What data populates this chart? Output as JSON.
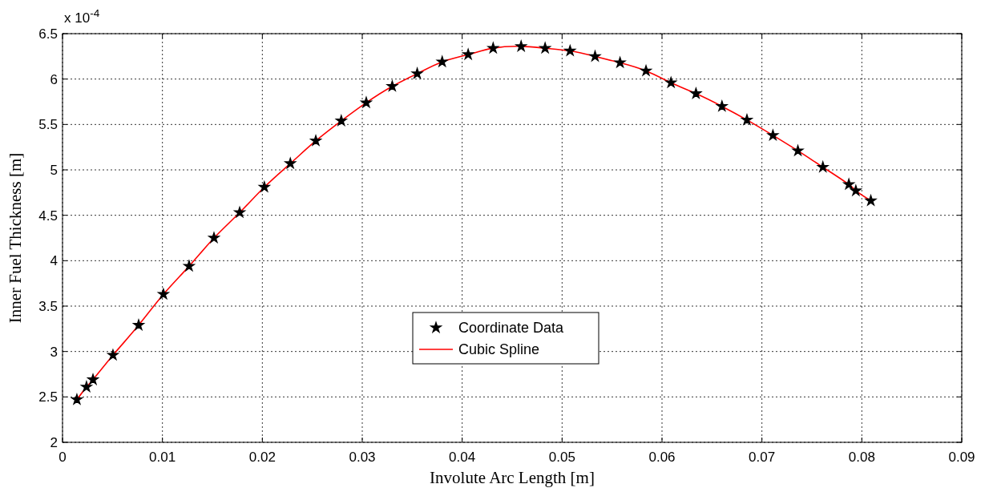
{
  "chart_data": {
    "type": "line",
    "xlabel": "Involute Arc Length [m]",
    "ylabel": "Inner Fuel Thickness [m]",
    "annotations": [
      "x 10$^{-4}$"
    ],
    "xlim": [
      0,
      0.09
    ],
    "xticks": [
      0,
      0.01,
      0.02,
      0.03,
      0.04,
      0.05,
      0.06,
      0.07,
      0.08,
      0.09
    ],
    "ylim": [
      2,
      6.5
    ],
    "yticks": [
      2,
      2.5,
      3,
      3.5,
      4,
      4.5,
      5,
      5.5,
      6,
      6.5
    ],
    "grid": true,
    "legend": "bottom",
    "x": [
      0.00144,
      0.0024,
      0.00305,
      0.00505,
      0.00762,
      0.0101,
      0.01267,
      0.01516,
      0.01773,
      0.0202,
      0.0228,
      0.02535,
      0.0279,
      0.0304,
      0.033,
      0.0355,
      0.038,
      0.0406,
      0.0431,
      0.0459,
      0.0483,
      0.0508,
      0.0533,
      0.0558,
      0.0584,
      0.0609,
      0.0634,
      0.066,
      0.0685,
      0.0711,
      0.0736,
      0.0761,
      0.0787,
      0.0794,
      0.0809
    ],
    "series": [
      {
        "name": "Coordinate Data",
        "type": "scatter",
        "marker": "star",
        "color": "#000000",
        "values": [
          2.47,
          2.61,
          2.69,
          2.96,
          3.29,
          3.63,
          3.94,
          4.25,
          4.53,
          4.81,
          5.07,
          5.32,
          5.54,
          5.74,
          5.92,
          6.06,
          6.19,
          6.27,
          6.34,
          6.36,
          6.34,
          6.31,
          6.25,
          6.18,
          6.09,
          5.96,
          5.84,
          5.7,
          5.55,
          5.38,
          5.21,
          5.03,
          4.84,
          4.77,
          4.66
        ]
      },
      {
        "name": "Cubic Spline",
        "line_style": "solid",
        "color": "#ff0000",
        "values": [
          2.47,
          2.61,
          2.69,
          2.96,
          3.29,
          3.63,
          3.94,
          4.25,
          4.53,
          4.81,
          5.07,
          5.32,
          5.54,
          5.74,
          5.92,
          6.06,
          6.19,
          6.27,
          6.34,
          6.36,
          6.34,
          6.31,
          6.25,
          6.18,
          6.09,
          5.96,
          5.84,
          5.7,
          5.55,
          5.38,
          5.21,
          5.03,
          4.84,
          4.77,
          4.66
        ]
      }
    ]
  }
}
